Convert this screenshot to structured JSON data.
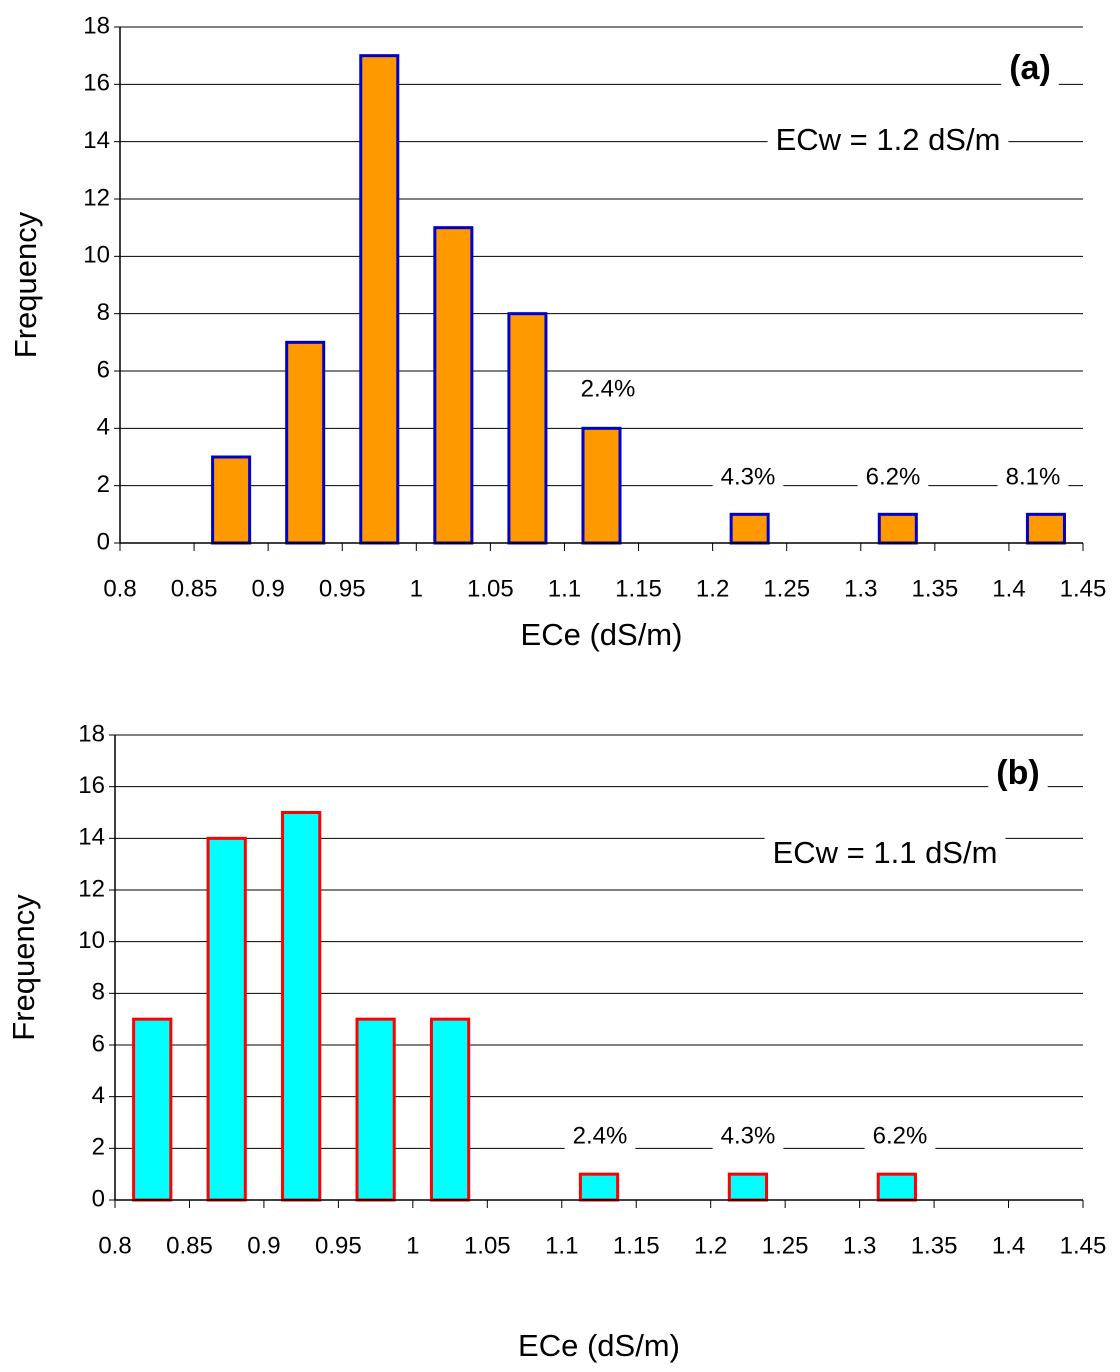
{
  "chart_data": [
    {
      "type": "histogram",
      "xlabel": "ECe (dS/m)",
      "ylabel": "Frequency",
      "bins": [
        0.8,
        0.85,
        0.9,
        0.95,
        1,
        1.05,
        1.1,
        1.15,
        1.2,
        1.25,
        1.3,
        1.35,
        1.4,
        1.45
      ],
      "values": [
        0,
        3,
        7,
        17,
        11,
        8,
        4,
        0,
        1,
        0,
        1,
        0,
        1
      ],
      "color": "#ff9900",
      "edgecolor": "#0000cc",
      "xlim": [
        0.8,
        1.45
      ],
      "xticks": [
        0.8,
        0.85,
        0.9,
        0.95,
        1,
        1.05,
        1.1,
        1.15,
        1.2,
        1.25,
        1.3,
        1.35,
        1.4,
        1.45
      ],
      "ylim": [
        0,
        18
      ],
      "yticks": [
        0,
        2,
        4,
        6,
        8,
        10,
        12,
        14,
        16,
        18
      ],
      "grid": true,
      "annotations": [
        "(a)",
        "ECw = 1.2 dS/m",
        "2.4%",
        "4.3%",
        "6.2%",
        "8.1%"
      ]
    },
    {
      "type": "histogram",
      "xlabel": "ECe (dS/m)",
      "ylabel": "Frequency",
      "bins": [
        0.8,
        0.85,
        0.9,
        0.95,
        1,
        1.05,
        1.1,
        1.15,
        1.2,
        1.25,
        1.3,
        1.35,
        1.4,
        1.45
      ],
      "values": [
        7,
        14,
        15,
        7,
        7,
        0,
        1,
        0,
        1,
        0,
        1,
        0,
        0
      ],
      "color": "#00ffff",
      "edgecolor": "#ff0000",
      "xlim": [
        0.8,
        1.45
      ],
      "xticks": [
        0.8,
        0.85,
        0.9,
        0.95,
        1,
        1.05,
        1.1,
        1.15,
        1.2,
        1.25,
        1.3,
        1.35,
        1.4,
        1.45
      ],
      "ylim": [
        0,
        18
      ],
      "yticks": [
        0,
        2,
        4,
        6,
        8,
        10,
        12,
        14,
        16,
        18
      ],
      "grid": true,
      "annotations": [
        "(b)",
        "ECw = 1.1 dS/m",
        "2.4%",
        "4.3%",
        "6.2%"
      ]
    }
  ]
}
